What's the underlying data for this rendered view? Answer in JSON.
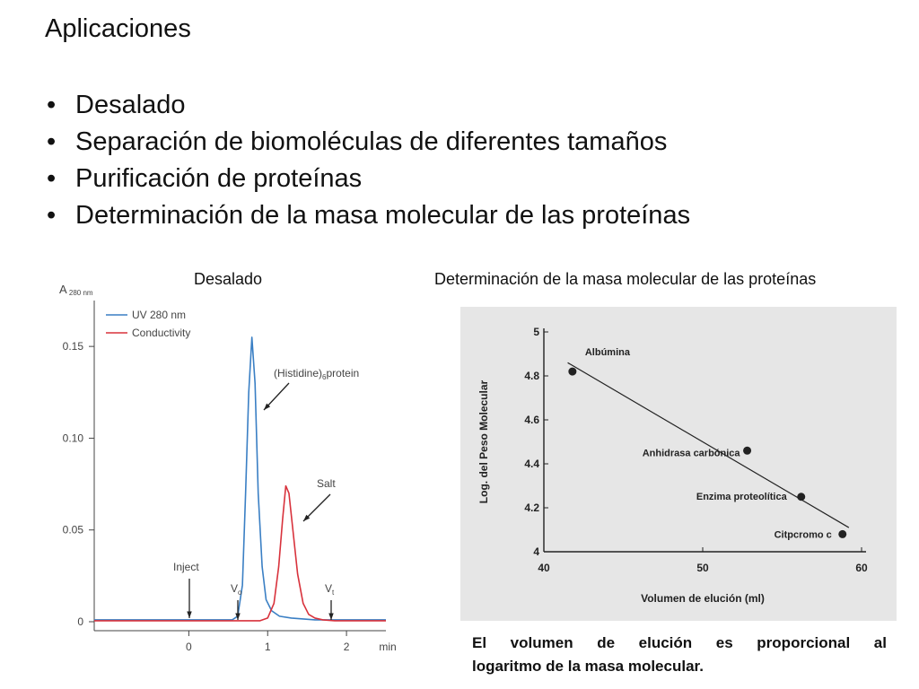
{
  "slide": {
    "title": "Aplicaciones",
    "bullet_glyph": "•",
    "bullets": [
      "Desalado",
      "Separación de biomoléculas de diferentes tamaños",
      "Purificación de proteínas",
      "Determinación de la masa molecular de las proteínas"
    ],
    "caption_left": "Desalado",
    "caption_right": "Determinación de la masa molecular de las proteínas",
    "note_line1": "El volumen de elución es proporcional al",
    "note_line2": "logaritmo de la masa molecular."
  },
  "chart_data": [
    {
      "type": "line",
      "ylabel_main": "A",
      "ylabel_sub": "280 nm",
      "xlabel": "min",
      "xlim": [
        -1.2,
        2.5
      ],
      "ylim": [
        0,
        0.175
      ],
      "xticks": [
        0,
        1,
        2
      ],
      "xtick_labels": [
        "0",
        "1",
        "2"
      ],
      "yticks": [
        0,
        0.05,
        0.1,
        0.15
      ],
      "ytick_labels": [
        "0",
        "0.05",
        "0.10",
        "0.15"
      ],
      "legend": [
        "UV 280 nm",
        "Conductivity"
      ],
      "series": [
        {
          "name": "UV 280 nm",
          "color": "#3a7fc4",
          "x": [
            -1.2,
            0.55,
            0.62,
            0.68,
            0.72,
            0.76,
            0.8,
            0.84,
            0.88,
            0.93,
            0.98,
            1.05,
            1.15,
            1.3,
            1.6,
            2.5
          ],
          "y": [
            0.001,
            0.001,
            0.003,
            0.02,
            0.07,
            0.125,
            0.155,
            0.13,
            0.07,
            0.03,
            0.012,
            0.006,
            0.003,
            0.002,
            0.001,
            0.001
          ]
        },
        {
          "name": "Conductivity",
          "color": "#d8323c",
          "x": [
            -1.2,
            0.9,
            1.0,
            1.08,
            1.14,
            1.19,
            1.23,
            1.27,
            1.32,
            1.38,
            1.45,
            1.52,
            1.6,
            1.7,
            1.85,
            2.5
          ],
          "y": [
            0.0005,
            0.0005,
            0.002,
            0.01,
            0.03,
            0.056,
            0.074,
            0.07,
            0.05,
            0.026,
            0.01,
            0.004,
            0.002,
            0.001,
            0.0005,
            0.0005
          ]
        }
      ],
      "annotations": [
        {
          "label": "(Histidine)",
          "sub": "6",
          "suffix": "protein"
        },
        {
          "label": "Salt"
        },
        {
          "label": "Inject"
        },
        {
          "label": "V",
          "sub": "o"
        },
        {
          "label": "V",
          "sub": "t"
        }
      ]
    },
    {
      "type": "scatter",
      "background": "#e6e6e6",
      "xlabel": "Volumen de elución (ml)",
      "ylabel": "Log. del Peso Molecular",
      "xlim": [
        40,
        60
      ],
      "ylim": [
        4,
        5
      ],
      "xticks": [
        40,
        50,
        60
      ],
      "yticks": [
        4,
        4.2,
        4.4,
        4.6,
        4.8,
        5
      ],
      "ytick_labels": [
        "4",
        "4.2",
        "4.4",
        "4.6",
        "4.8",
        "5"
      ],
      "points": [
        {
          "label": "Albúmina",
          "x": 41.8,
          "y": 4.82
        },
        {
          "label": "Anhidrasa carbónica",
          "x": 52.8,
          "y": 4.46
        },
        {
          "label": "Enzima proteolítica",
          "x": 56.2,
          "y": 4.25
        },
        {
          "label": "Citpcromo c",
          "x": 58.8,
          "y": 4.08
        }
      ],
      "trend_line": {
        "x": [
          41.5,
          59.2
        ],
        "y": [
          4.86,
          4.11
        ]
      }
    }
  ]
}
